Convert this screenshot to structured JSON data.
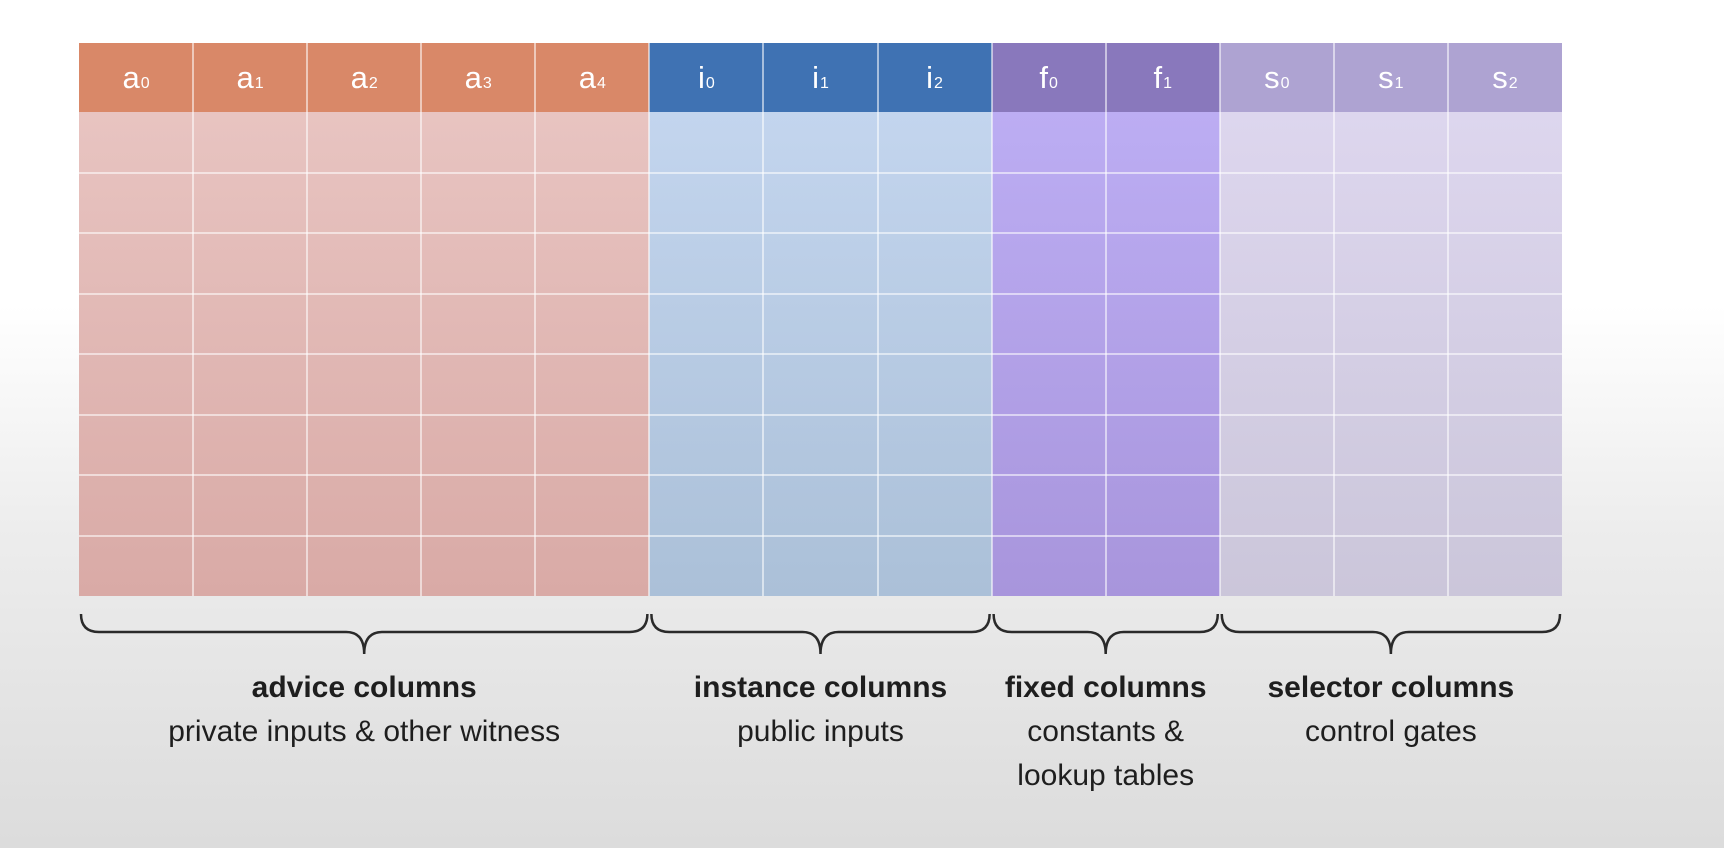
{
  "columns": [
    {
      "base": "a",
      "index": "0",
      "group": "advice"
    },
    {
      "base": "a",
      "index": "1",
      "group": "advice"
    },
    {
      "base": "a",
      "index": "2",
      "group": "advice"
    },
    {
      "base": "a",
      "index": "3",
      "group": "advice"
    },
    {
      "base": "a",
      "index": "4",
      "group": "advice"
    },
    {
      "base": "i",
      "index": "0",
      "group": "instance"
    },
    {
      "base": "i",
      "index": "1",
      "group": "instance"
    },
    {
      "base": "i",
      "index": "2",
      "group": "instance"
    },
    {
      "base": "f",
      "index": "0",
      "group": "fixed"
    },
    {
      "base": "f",
      "index": "1",
      "group": "fixed"
    },
    {
      "base": "s",
      "index": "0",
      "group": "selector"
    },
    {
      "base": "s",
      "index": "1",
      "group": "selector"
    },
    {
      "base": "s",
      "index": "2",
      "group": "selector"
    }
  ],
  "row_count": 8,
  "groups": {
    "advice": {
      "title": "advice columns",
      "lines": [
        "private inputs & other witness"
      ],
      "header_color": "#d98868",
      "body_top": "#e8c4c1",
      "body_bottom": "#d9aaa6"
    },
    "instance": {
      "title": "instance columns",
      "lines": [
        "public inputs"
      ],
      "header_color": "#3f72b3",
      "body_top": "#c3d5ee",
      "body_bottom": "#abc0d8"
    },
    "fixed": {
      "title": "fixed columns",
      "lines": [
        "constants &",
        "lookup tables"
      ],
      "header_color": "#8978bc",
      "body_top": "#bcadf3",
      "body_bottom": "#a895dc"
    },
    "selector": {
      "title": "selector columns",
      "lines": [
        "control gates"
      ],
      "header_color": "#aea3d2",
      "body_top": "#ddd6ee",
      "body_bottom": "#cbc6da"
    }
  },
  "group_order": [
    "advice",
    "instance",
    "fixed",
    "selector"
  ]
}
